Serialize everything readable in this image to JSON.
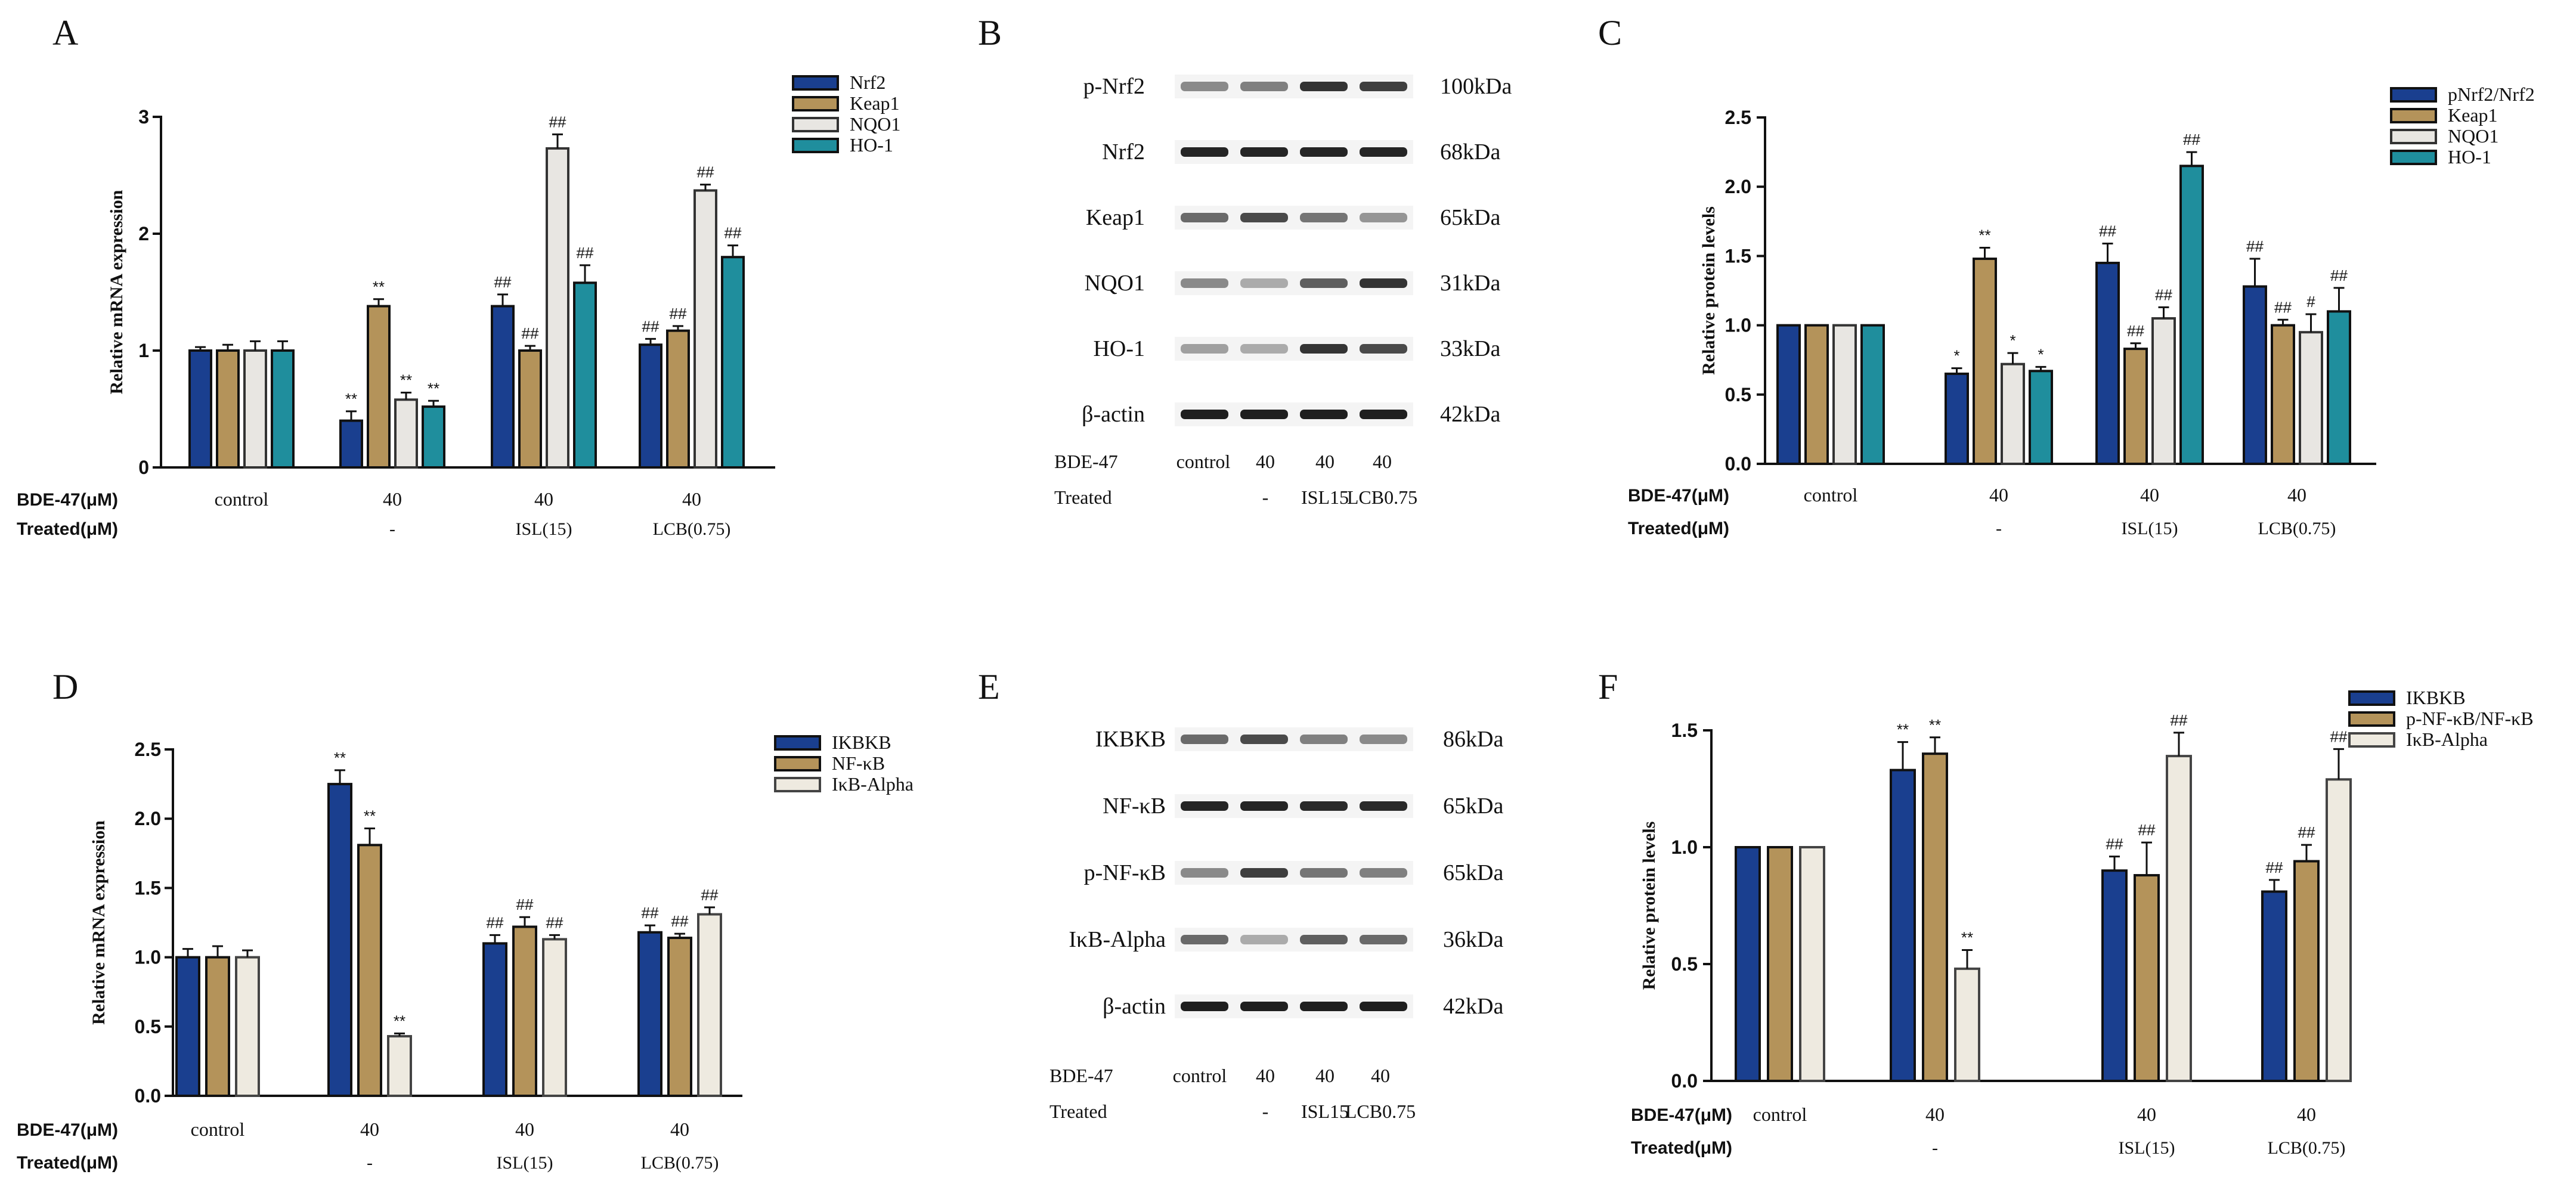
{
  "colors": {
    "navy": "#1a3f8f",
    "tan": "#b4935a",
    "gray": "#e8e6e2",
    "teal": "#1f8e9d",
    "cream": "#eeeae0"
  },
  "chart_data": [
    {
      "id": "A",
      "type": "bar",
      "panel_label": "A",
      "ylabel": "Relative mRNA expression",
      "ylim": [
        0,
        3
      ],
      "yticks": [
        "0",
        "1",
        "2",
        "3"
      ],
      "ytick_values": [
        0,
        1,
        2,
        3
      ],
      "groups": [
        "control",
        "40",
        "40",
        "40"
      ],
      "row1_label": "BDE-47(μM)",
      "row2_label": "Treated(μM)",
      "treated": [
        "",
        "-",
        "ISL(15)",
        "LCB(0.75)"
      ],
      "legend_placement": "top-right",
      "series": [
        {
          "name": "Nrf2",
          "values": [
            1.0,
            0.4,
            1.38,
            1.05
          ],
          "errors": [
            0.03,
            0.08,
            0.1,
            0.05
          ],
          "marks": [
            "",
            "**",
            "##",
            "##"
          ]
        },
        {
          "name": "Keap1",
          "values": [
            1.0,
            1.38,
            1.0,
            1.17
          ],
          "errors": [
            0.05,
            0.06,
            0.04,
            0.04
          ],
          "marks": [
            "",
            "**",
            "##",
            "##"
          ]
        },
        {
          "name": "NQO1",
          "values": [
            1.0,
            0.58,
            2.73,
            2.37
          ],
          "errors": [
            0.08,
            0.06,
            0.12,
            0.05
          ],
          "marks": [
            "",
            "**",
            "##",
            "##"
          ]
        },
        {
          "name": "HO-1",
          "values": [
            1.0,
            0.52,
            1.58,
            1.8
          ],
          "errors": [
            0.08,
            0.05,
            0.15,
            0.1
          ],
          "marks": [
            "",
            "**",
            "##",
            "##"
          ]
        }
      ]
    },
    {
      "id": "C",
      "type": "bar",
      "panel_label": "C",
      "ylabel": "Relative protein levels",
      "ylim": [
        0,
        2.5
      ],
      "yticks": [
        "0.0",
        "0.5",
        "1.0",
        "1.5",
        "2.0",
        "2.5"
      ],
      "ytick_values": [
        0,
        0.5,
        1.0,
        1.5,
        2.0,
        2.5
      ],
      "groups": [
        "control",
        "40",
        "40",
        "40"
      ],
      "row1_label": "BDE-47(μM)",
      "row2_label": "Treated(μM)",
      "treated": [
        "",
        "-",
        "ISL(15)",
        "LCB(0.75)"
      ],
      "legend_placement": "top-right",
      "series": [
        {
          "name": "pNrf2/Nrf2",
          "values": [
            1.0,
            0.65,
            1.45,
            1.28
          ],
          "errors": [
            0.0,
            0.04,
            0.14,
            0.2
          ],
          "marks": [
            "",
            "*",
            "##",
            "##"
          ]
        },
        {
          "name": "Keap1",
          "values": [
            1.0,
            1.48,
            0.83,
            1.0
          ],
          "errors": [
            0.0,
            0.08,
            0.04,
            0.04
          ],
          "marks": [
            "",
            "**",
            "##",
            "##"
          ]
        },
        {
          "name": "NQO1",
          "values": [
            1.0,
            0.72,
            1.05,
            0.95
          ],
          "errors": [
            0.0,
            0.08,
            0.08,
            0.13
          ],
          "marks": [
            "",
            "*",
            "##",
            "#"
          ]
        },
        {
          "name": "HO-1",
          "values": [
            1.0,
            0.67,
            2.15,
            1.1
          ],
          "errors": [
            0.0,
            0.03,
            0.1,
            0.17
          ],
          "marks": [
            "",
            "*",
            "##",
            "##"
          ]
        }
      ]
    },
    {
      "id": "D",
      "type": "bar",
      "panel_label": "D",
      "ylabel": "Relative mRNA expression",
      "ylim": [
        0,
        2.5
      ],
      "yticks": [
        "0.0",
        "0.5",
        "1.0",
        "1.5",
        "2.0",
        "2.5"
      ],
      "ytick_values": [
        0,
        0.5,
        1.0,
        1.5,
        2.0,
        2.5
      ],
      "groups": [
        "control",
        "40",
        "40",
        "40"
      ],
      "row1_label": "BDE-47(μM)",
      "row2_label": "Treated(μM)",
      "treated": [
        "",
        "-",
        "ISL(15)",
        "LCB(0.75)"
      ],
      "legend_placement": "top-right",
      "series": [
        {
          "name": "IKBKB",
          "values": [
            1.0,
            2.25,
            1.1,
            1.18
          ],
          "errors": [
            0.06,
            0.1,
            0.06,
            0.05
          ],
          "marks": [
            "",
            "**",
            "##",
            "##"
          ]
        },
        {
          "name": "NF-κB",
          "values": [
            1.0,
            1.81,
            1.22,
            1.14
          ],
          "errors": [
            0.08,
            0.12,
            0.07,
            0.03
          ],
          "marks": [
            "",
            "**",
            "##",
            "##"
          ]
        },
        {
          "name": "IκB-Alpha",
          "values": [
            1.0,
            0.43,
            1.13,
            1.31
          ],
          "errors": [
            0.05,
            0.02,
            0.03,
            0.05
          ],
          "marks": [
            "",
            "**",
            "##",
            "##"
          ]
        }
      ]
    },
    {
      "id": "F",
      "type": "bar",
      "panel_label": "F",
      "ylabel": "Relative protein levels",
      "ylim": [
        0,
        1.5
      ],
      "yticks": [
        "0.0",
        "0.5",
        "1.0",
        "1.5"
      ],
      "ytick_values": [
        0,
        0.5,
        1.0,
        1.5
      ],
      "groups": [
        "control",
        "40",
        "40",
        "40"
      ],
      "row1_label": "BDE-47(μM)",
      "row2_label": "Treated(μM)",
      "treated": [
        "",
        "-",
        "ISL(15)",
        "LCB(0.75)"
      ],
      "legend_placement": "top-right",
      "series": [
        {
          "name": "IKBKB",
          "values": [
            1.0,
            1.33,
            0.9,
            0.81
          ],
          "errors": [
            0.0,
            0.12,
            0.06,
            0.05
          ],
          "marks": [
            "",
            "**",
            "##",
            "##"
          ]
        },
        {
          "name": "p-NF-κB/NF-κB",
          "values": [
            1.0,
            1.4,
            0.88,
            0.94
          ],
          "errors": [
            0.0,
            0.07,
            0.14,
            0.07
          ],
          "marks": [
            "",
            "**",
            "##",
            "##"
          ]
        },
        {
          "name": "IκB-Alpha",
          "values": [
            1.0,
            0.48,
            1.39,
            1.29
          ],
          "errors": [
            0.0,
            0.08,
            0.1,
            0.13
          ],
          "marks": [
            "",
            "**",
            "##",
            "##"
          ]
        }
      ]
    }
  ],
  "blots": [
    {
      "id": "B",
      "panel_label": "B",
      "row1_label": "BDE-47",
      "row1": [
        "control",
        "40",
        "40",
        "40"
      ],
      "row2_label": "Treated",
      "row2": [
        "-",
        "ISL15",
        "LCB0.75"
      ],
      "proteins": [
        {
          "name": "p-Nrf2",
          "kda": "100kDa",
          "intensities": [
            0.45,
            0.5,
            0.85,
            0.8
          ]
        },
        {
          "name": "Nrf2",
          "kda": "68kDa",
          "intensities": [
            0.92,
            0.92,
            0.92,
            0.92
          ]
        },
        {
          "name": "Keap1",
          "kda": "65kDa",
          "intensities": [
            0.6,
            0.75,
            0.55,
            0.4
          ]
        },
        {
          "name": "NQO1",
          "kda": "31kDa",
          "intensities": [
            0.45,
            0.3,
            0.65,
            0.85
          ]
        },
        {
          "name": "HO-1",
          "kda": "33kDa",
          "intensities": [
            0.35,
            0.3,
            0.85,
            0.75
          ]
        },
        {
          "name": "β-actin",
          "kda": "42kDa",
          "intensities": [
            0.95,
            0.95,
            0.95,
            0.95
          ]
        }
      ]
    },
    {
      "id": "E",
      "panel_label": "E",
      "row1_label": "BDE-47",
      "row1": [
        "control",
        "40",
        "40",
        "40"
      ],
      "row2_label": "Treated",
      "row2": [
        "-",
        "ISL15",
        "LCB0.75"
      ],
      "proteins": [
        {
          "name": "IKBKB",
          "kda": "86kDa",
          "intensities": [
            0.6,
            0.75,
            0.5,
            0.45
          ]
        },
        {
          "name": "NF-κB",
          "kda": "65kDa",
          "intensities": [
            0.92,
            0.92,
            0.9,
            0.9
          ]
        },
        {
          "name": "p-NF-κB",
          "kda": "65kDa",
          "intensities": [
            0.45,
            0.8,
            0.55,
            0.5
          ]
        },
        {
          "name": "IκB-Alpha",
          "kda": "36kDa",
          "intensities": [
            0.6,
            0.3,
            0.65,
            0.6
          ]
        },
        {
          "name": "β-actin",
          "kda": "42kDa",
          "intensities": [
            0.95,
            0.95,
            0.95,
            0.95
          ]
        }
      ]
    }
  ]
}
